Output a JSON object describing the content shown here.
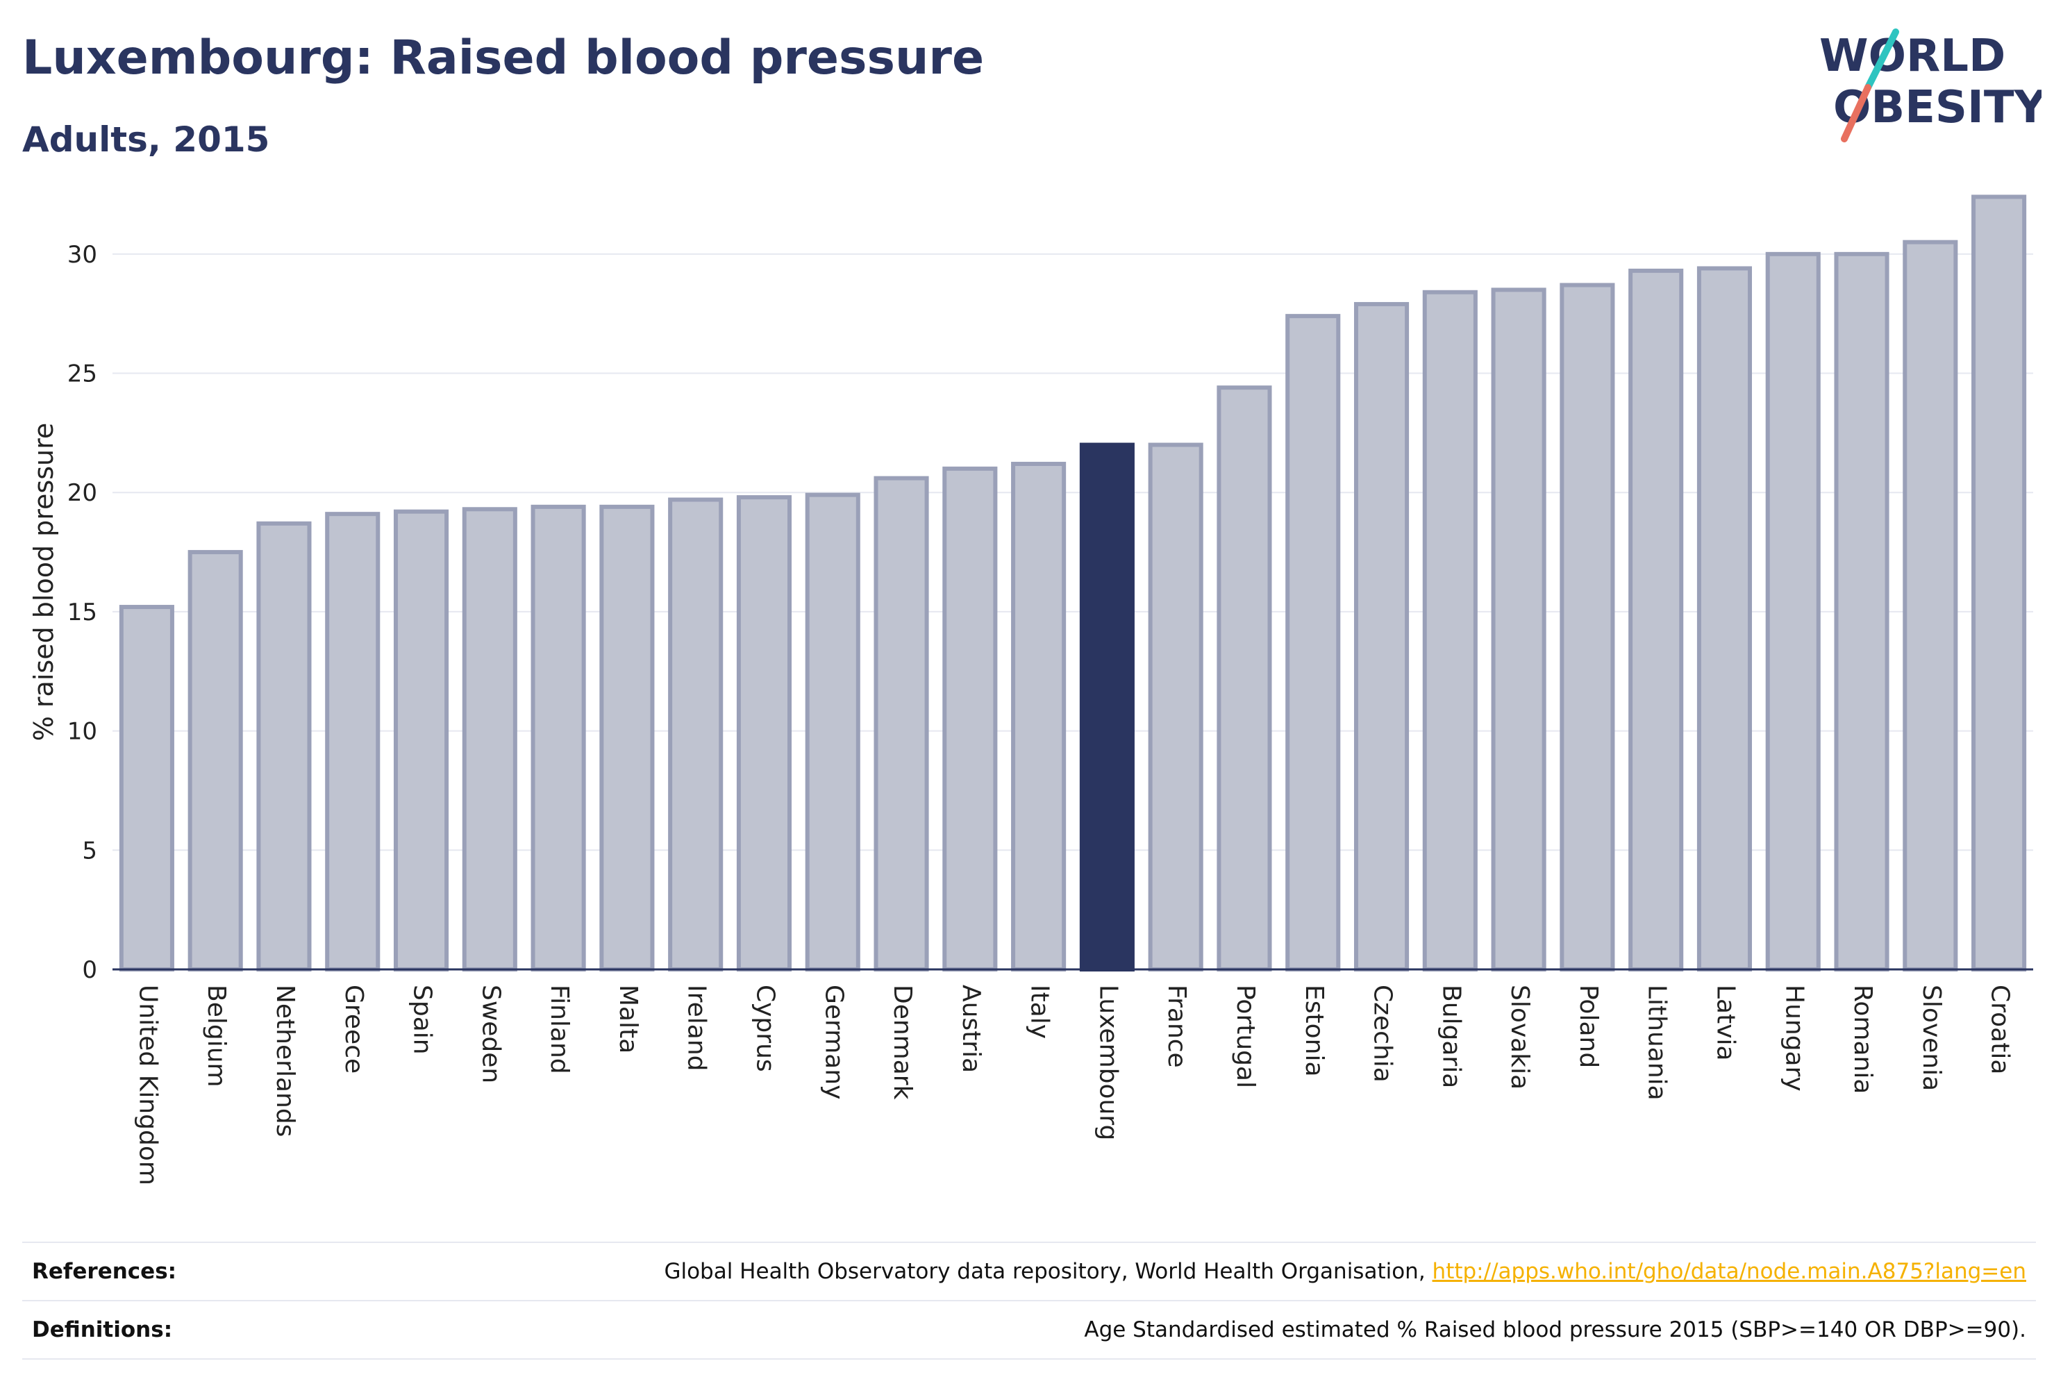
{
  "header": {
    "title": "Luxembourg: Raised blood pressure",
    "subtitle": "Adults, 2015"
  },
  "logo": {
    "line1": "WORLD",
    "line2": "OBESITY",
    "slash_top_color": "#2ec4c0",
    "slash_bottom_color": "#e8705f"
  },
  "chart_data": {
    "type": "bar",
    "title": "Luxembourg: Raised blood pressure",
    "subtitle": "Adults, 2015",
    "xlabel": "",
    "ylabel": "% raised blood pressure",
    "ylim": [
      0,
      32.5
    ],
    "yticks": [
      0,
      5,
      10,
      15,
      20,
      25,
      30
    ],
    "grid": true,
    "legend": "none",
    "highlight": "Luxembourg",
    "colors": {
      "bar": "#bfc3d0",
      "bar_edge": "#9aa0b8",
      "highlight": "#2a3560"
    },
    "categories": [
      "United Kingdom",
      "Belgium",
      "Netherlands",
      "Greece",
      "Spain",
      "Sweden",
      "Finland",
      "Malta",
      "Ireland",
      "Cyprus",
      "Germany",
      "Denmark",
      "Austria",
      "Italy",
      "Luxembourg",
      "France",
      "Portugal",
      "Estonia",
      "Czechia",
      "Bulgaria",
      "Slovakia",
      "Poland",
      "Lithuania",
      "Latvia",
      "Hungary",
      "Romania",
      "Slovenia",
      "Croatia"
    ],
    "values": [
      15.2,
      17.5,
      18.7,
      19.1,
      19.2,
      19.3,
      19.4,
      19.4,
      19.7,
      19.8,
      19.9,
      20.6,
      21.0,
      21.2,
      22.0,
      22.0,
      24.4,
      27.4,
      27.9,
      28.4,
      28.5,
      28.7,
      29.3,
      29.4,
      30.0,
      30.0,
      30.5,
      32.4
    ]
  },
  "footer": {
    "references_label": "References:",
    "references_text": "Global Health Observatory data repository, World Health Organisation, ",
    "references_link": "http://apps.who.int/gho/data/node.main.A875?lang=en",
    "definitions_label": "Definitions:",
    "definitions_text": "Age Standardised estimated % Raised blood pressure 2015 (SBP>=140 OR DBP>=90)."
  }
}
